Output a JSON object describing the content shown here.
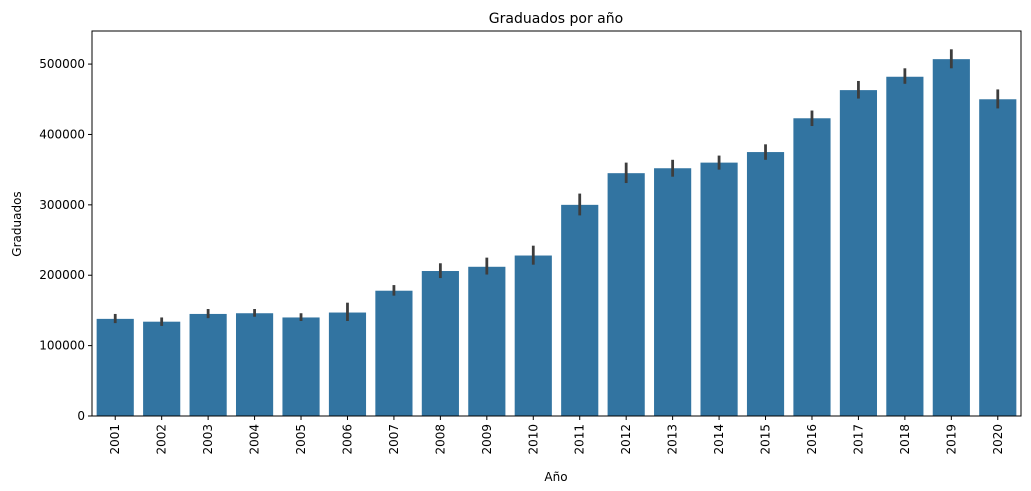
{
  "chart_data": {
    "type": "bar",
    "title": "Graduados por año",
    "xlabel": "Año",
    "ylabel": "Graduados",
    "categories": [
      "2001",
      "2002",
      "2003",
      "2004",
      "2005",
      "2006",
      "2007",
      "2008",
      "2009",
      "2010",
      "2011",
      "2012",
      "2013",
      "2014",
      "2015",
      "2016",
      "2017",
      "2018",
      "2019",
      "2020"
    ],
    "values": [
      138000,
      134000,
      145000,
      146000,
      140000,
      147000,
      178000,
      206000,
      212000,
      228000,
      300000,
      345000,
      352000,
      360000,
      375000,
      423000,
      463000,
      482000,
      507000,
      450000
    ],
    "error_low": [
      132000,
      128000,
      139000,
      141000,
      135000,
      135000,
      171000,
      196000,
      201000,
      215000,
      285000,
      331000,
      340000,
      350000,
      364000,
      412000,
      451000,
      472000,
      494000,
      437000
    ],
    "error_high": [
      145000,
      140000,
      152000,
      152000,
      146000,
      161000,
      186000,
      217000,
      225000,
      242000,
      316000,
      360000,
      364000,
      370000,
      386000,
      434000,
      476000,
      494000,
      521000,
      464000
    ],
    "yticks": [
      0,
      100000,
      200000,
      300000,
      400000,
      500000
    ],
    "ytick_labels": [
      "0",
      "100000",
      "200000",
      "300000",
      "400000",
      "500000"
    ],
    "ylim": [
      0,
      547000
    ],
    "grid": false,
    "colors": {
      "bar": "#3274a1",
      "error": "#3d3d3d"
    }
  }
}
